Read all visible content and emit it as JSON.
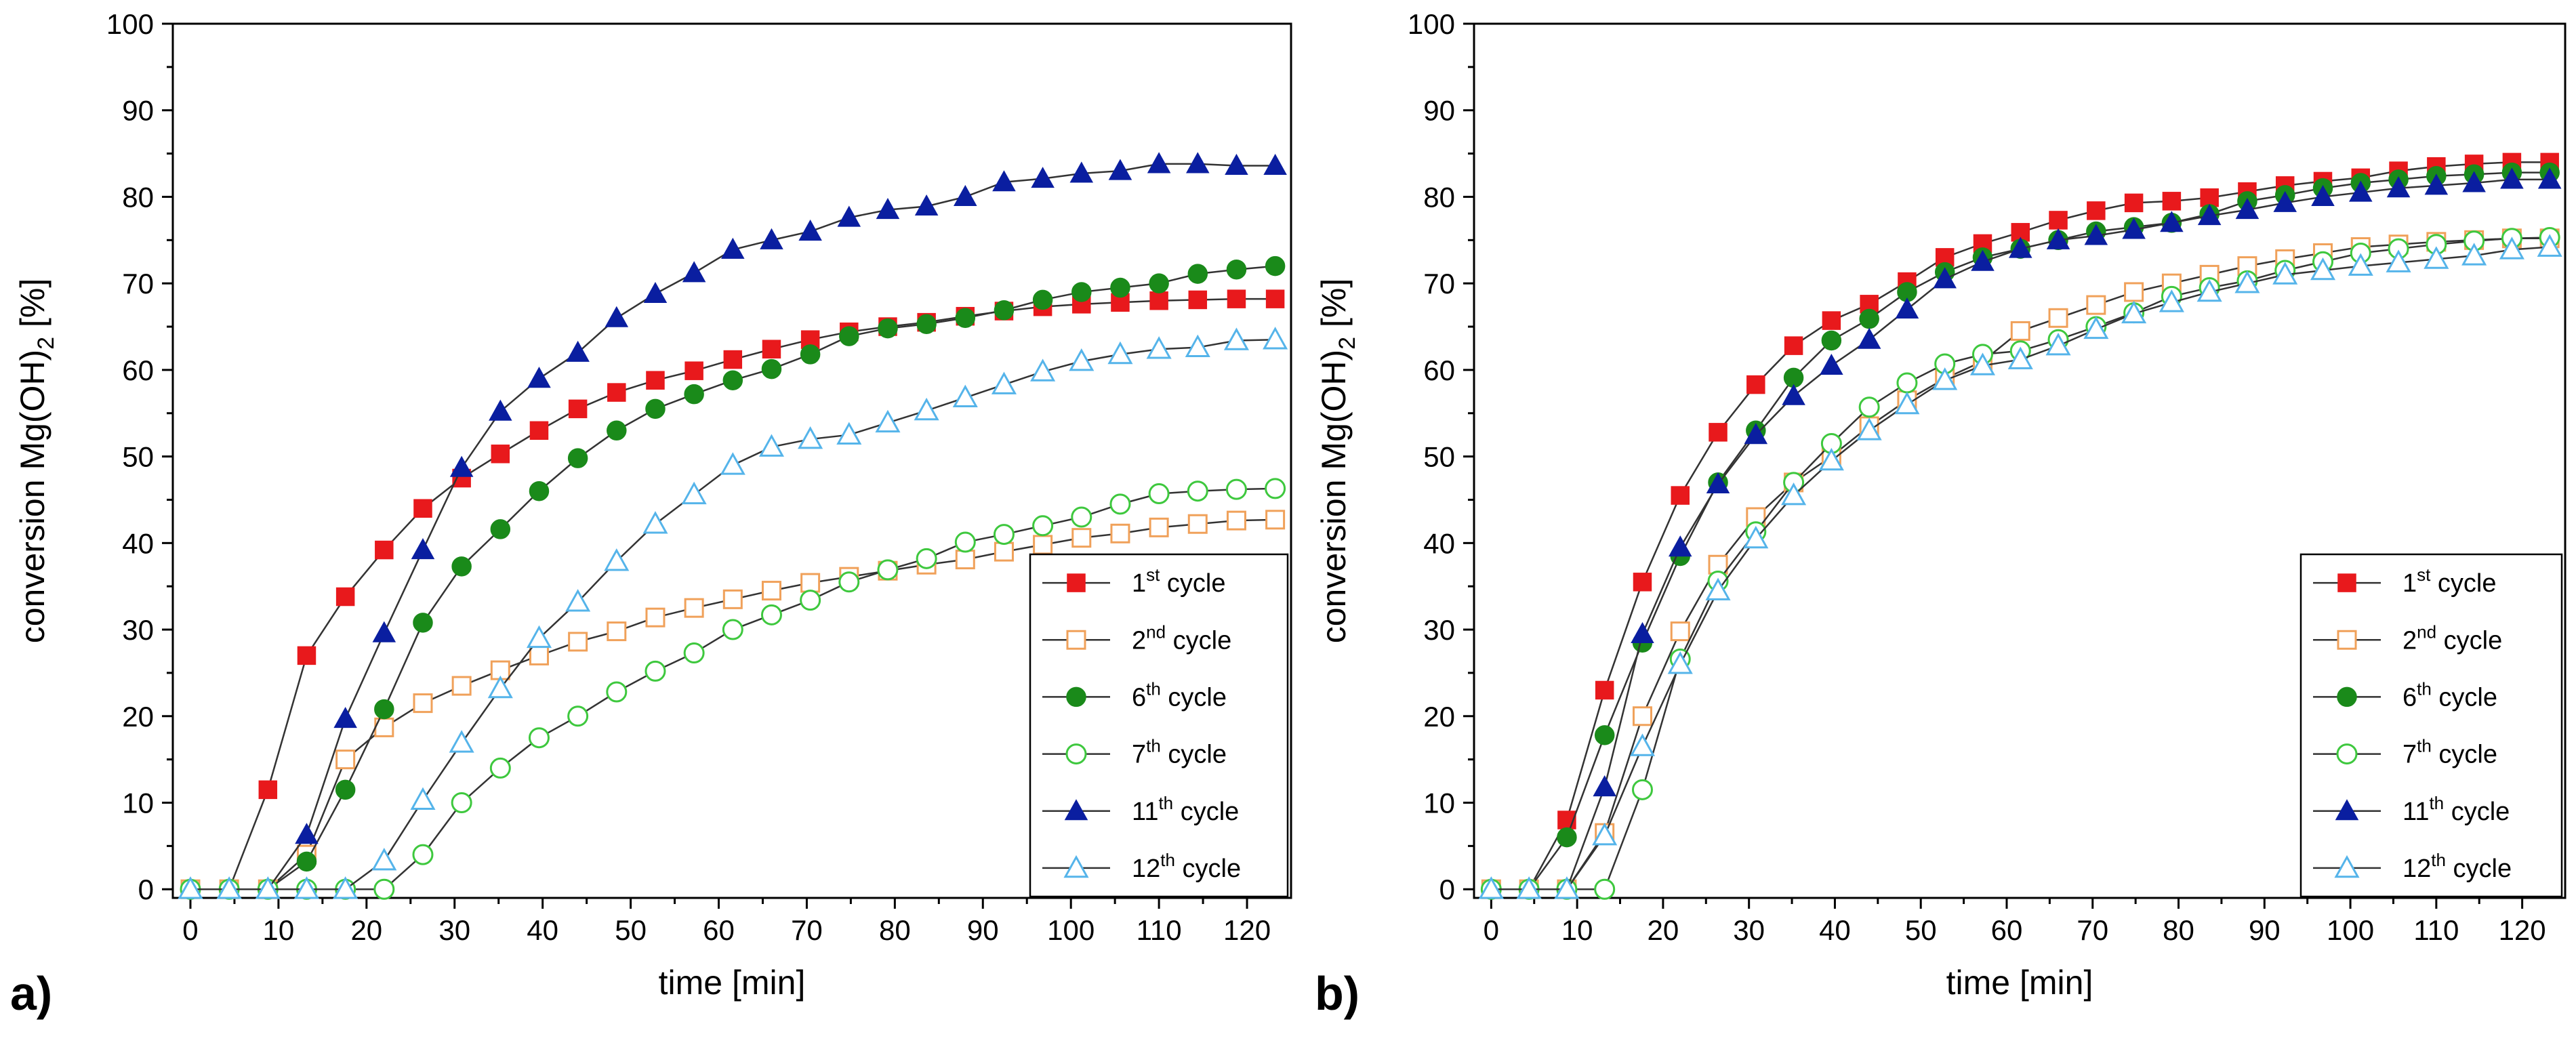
{
  "chart_data": [
    {
      "type": "line",
      "panel_label": "a)",
      "xlabel": "time [min]",
      "ylabel_main": "conversion Mg(OH)",
      "ylabel_sub": "2",
      "ylabel_tail": " [%]",
      "xlim": [
        -2,
        125
      ],
      "ylim": [
        -1,
        100
      ],
      "xticks": [
        0,
        10,
        20,
        30,
        40,
        50,
        60,
        70,
        80,
        90,
        100,
        110,
        120
      ],
      "yticks": [
        0,
        10,
        20,
        30,
        40,
        50,
        60,
        70,
        80,
        90,
        100
      ],
      "legend_position": "bottom-right",
      "x": [
        0,
        4.4,
        8.8,
        13.2,
        17.6,
        22,
        26.4,
        30.8,
        35.2,
        39.6,
        44,
        48.4,
        52.8,
        57.2,
        61.6,
        66,
        70.4,
        74.8,
        79.2,
        83.6,
        88,
        92.4,
        96.8,
        101.2,
        105.6,
        110,
        114.4,
        118.8,
        123.2
      ],
      "series": [
        {
          "name_pre": "1",
          "name_sup": "st",
          "name_post": " cycle",
          "marker": "square",
          "filled": true,
          "color": "#e8191c",
          "values": [
            0,
            0,
            11.5,
            27,
            33.8,
            39.2,
            44,
            47.5,
            50.3,
            53,
            55.5,
            57.4,
            58.8,
            59.9,
            61.2,
            62.4,
            63.5,
            64.4,
            65,
            65.5,
            66.2,
            66.8,
            67.3,
            67.6,
            67.8,
            68,
            68.1,
            68.2,
            68.2
          ]
        },
        {
          "name_pre": "2",
          "name_sup": "nd",
          "name_post": " cycle",
          "marker": "square",
          "filled": false,
          "color": "#f0a15a",
          "values": [
            0,
            0,
            0,
            4,
            15,
            18.7,
            21.5,
            23.5,
            25.3,
            27,
            28.6,
            29.8,
            31.4,
            32.5,
            33.5,
            34.5,
            35.4,
            36.1,
            36.8,
            37.5,
            38.1,
            39,
            39.8,
            40.6,
            41.1,
            41.8,
            42.2,
            42.6,
            42.7
          ]
        },
        {
          "name_pre": "6",
          "name_sup": "th",
          "name_post": " cycle",
          "marker": "circle",
          "filled": true,
          "color": "#1a8a1a",
          "values": [
            0,
            0,
            0,
            3.2,
            11.5,
            20.8,
            30.8,
            37.3,
            41.6,
            46,
            49.8,
            53,
            55.5,
            57.2,
            58.8,
            60.1,
            61.8,
            63.9,
            64.8,
            65.3,
            66,
            66.9,
            68.1,
            69,
            69.5,
            70,
            71.1,
            71.6,
            72
          ]
        },
        {
          "name_pre": "7",
          "name_sup": "th",
          "name_post": " cycle",
          "marker": "circle",
          "filled": false,
          "color": "#3ec83e",
          "values": [
            0,
            0,
            0,
            0,
            0,
            0,
            4,
            10,
            14,
            17.5,
            20,
            22.8,
            25.2,
            27.3,
            30,
            31.7,
            33.4,
            35.5,
            36.9,
            38.2,
            40.1,
            41,
            42,
            43,
            44.5,
            45.7,
            46,
            46.2,
            46.3
          ]
        },
        {
          "name_pre": "11",
          "name_sup": "th",
          "name_post": " cycle",
          "marker": "triangle",
          "filled": true,
          "color": "#0a1ea0",
          "values": [
            0,
            0,
            0,
            6.3,
            19.7,
            29.6,
            39.2,
            48.7,
            55.2,
            59,
            62,
            66,
            68.8,
            71.2,
            73.9,
            75,
            76,
            77.6,
            78.5,
            78.9,
            80,
            81.7,
            82.1,
            82.7,
            83,
            83.8,
            83.8,
            83.6,
            83.6
          ]
        },
        {
          "name_pre": "12",
          "name_sup": "th",
          "name_post": " cycle",
          "marker": "triangle",
          "filled": false,
          "color": "#55b4ea",
          "values": [
            0,
            0,
            0,
            0,
            0,
            3.3,
            10.3,
            16.9,
            23.2,
            29,
            33.2,
            37.9,
            42.2,
            45.6,
            49,
            51.1,
            52,
            52.5,
            53.9,
            55.3,
            56.8,
            58.3,
            59.8,
            61,
            61.8,
            62.4,
            62.6,
            63.4,
            63.5
          ]
        }
      ]
    },
    {
      "type": "line",
      "panel_label": "b)",
      "xlabel": "time [min]",
      "ylabel_main": "conversion Mg(OH)",
      "ylabel_sub": "2",
      "ylabel_tail": " [%]",
      "xlim": [
        -2,
        125
      ],
      "ylim": [
        -1,
        100
      ],
      "xticks": [
        0,
        10,
        20,
        30,
        40,
        50,
        60,
        70,
        80,
        90,
        100,
        110,
        120
      ],
      "yticks": [
        0,
        10,
        20,
        30,
        40,
        50,
        60,
        70,
        80,
        90,
        100
      ],
      "legend_position": "bottom-right",
      "x": [
        0,
        4.4,
        8.8,
        13.2,
        17.6,
        22,
        26.4,
        30.8,
        35.2,
        39.6,
        44,
        48.4,
        52.8,
        57.2,
        61.6,
        66,
        70.4,
        74.8,
        79.2,
        83.6,
        88,
        92.4,
        96.8,
        101.2,
        105.6,
        110,
        114.4,
        118.8,
        123.2
      ],
      "series": [
        {
          "name_pre": "1",
          "name_sup": "st",
          "name_post": " cycle",
          "marker": "square",
          "filled": true,
          "color": "#e8191c",
          "values": [
            0,
            0,
            8,
            23,
            35.5,
            45.5,
            52.8,
            58.3,
            62.8,
            65.7,
            67.6,
            70.2,
            73,
            74.6,
            75.9,
            77.3,
            78.4,
            79.3,
            79.5,
            79.9,
            80.6,
            81.3,
            81.8,
            82.2,
            83,
            83.5,
            83.8,
            84,
            84
          ]
        },
        {
          "name_pre": "2",
          "name_sup": "nd",
          "name_post": " cycle",
          "marker": "square",
          "filled": false,
          "color": "#f0a15a",
          "values": [
            0,
            0,
            0,
            6.5,
            20,
            29.8,
            37.5,
            43,
            47,
            50,
            53.5,
            56.5,
            59,
            61,
            64.5,
            66,
            67.5,
            69,
            70,
            71,
            72,
            72.8,
            73.5,
            74.2,
            74.5,
            74.8,
            75,
            75.2,
            75.2
          ]
        },
        {
          "name_pre": "6",
          "name_sup": "th",
          "name_post": " cycle",
          "marker": "circle",
          "filled": true,
          "color": "#1a8a1a",
          "values": [
            0,
            0,
            6,
            17.8,
            28.5,
            38.5,
            47,
            53,
            59.1,
            63.4,
            65.9,
            69,
            71.3,
            73,
            74,
            75,
            76,
            76.5,
            77,
            78,
            79.5,
            80.2,
            81,
            81.6,
            82,
            82.4,
            82.6,
            82.8,
            82.8
          ]
        },
        {
          "name_pre": "7",
          "name_sup": "th",
          "name_post": " cycle",
          "marker": "circle",
          "filled": false,
          "color": "#3ec83e",
          "values": [
            0,
            0,
            0,
            0,
            11.5,
            26.6,
            35.6,
            41.3,
            47,
            51.5,
            55.7,
            58.5,
            60.7,
            61.8,
            62.2,
            63.5,
            65,
            66.6,
            68.5,
            69.5,
            70.3,
            71.5,
            72.5,
            73.5,
            74,
            74.5,
            74.9,
            75.2,
            75.3
          ]
        },
        {
          "name_pre": "11",
          "name_sup": "th",
          "name_post": " cycle",
          "marker": "triangle",
          "filled": true,
          "color": "#0a1ea0",
          "values": [
            0,
            0,
            0,
            11.8,
            29.5,
            39.5,
            46.8,
            52.5,
            57,
            60.5,
            63.5,
            67,
            70.5,
            72.5,
            74,
            75,
            75.5,
            76.2,
            77,
            77.8,
            78.5,
            79.3,
            80,
            80.5,
            81,
            81.3,
            81.6,
            82,
            82
          ]
        },
        {
          "name_pre": "12",
          "name_sup": "th",
          "name_post": " cycle",
          "marker": "triangle",
          "filled": false,
          "color": "#55b4ea",
          "values": [
            0,
            0,
            0,
            6.2,
            16.5,
            26,
            34.5,
            40.5,
            45.5,
            49.5,
            53,
            56,
            58.8,
            60.5,
            61.2,
            62.8,
            64.7,
            66.5,
            67.8,
            69,
            70,
            71,
            71.5,
            72,
            72.4,
            72.8,
            73.2,
            73.9,
            74.2
          ]
        }
      ]
    }
  ]
}
